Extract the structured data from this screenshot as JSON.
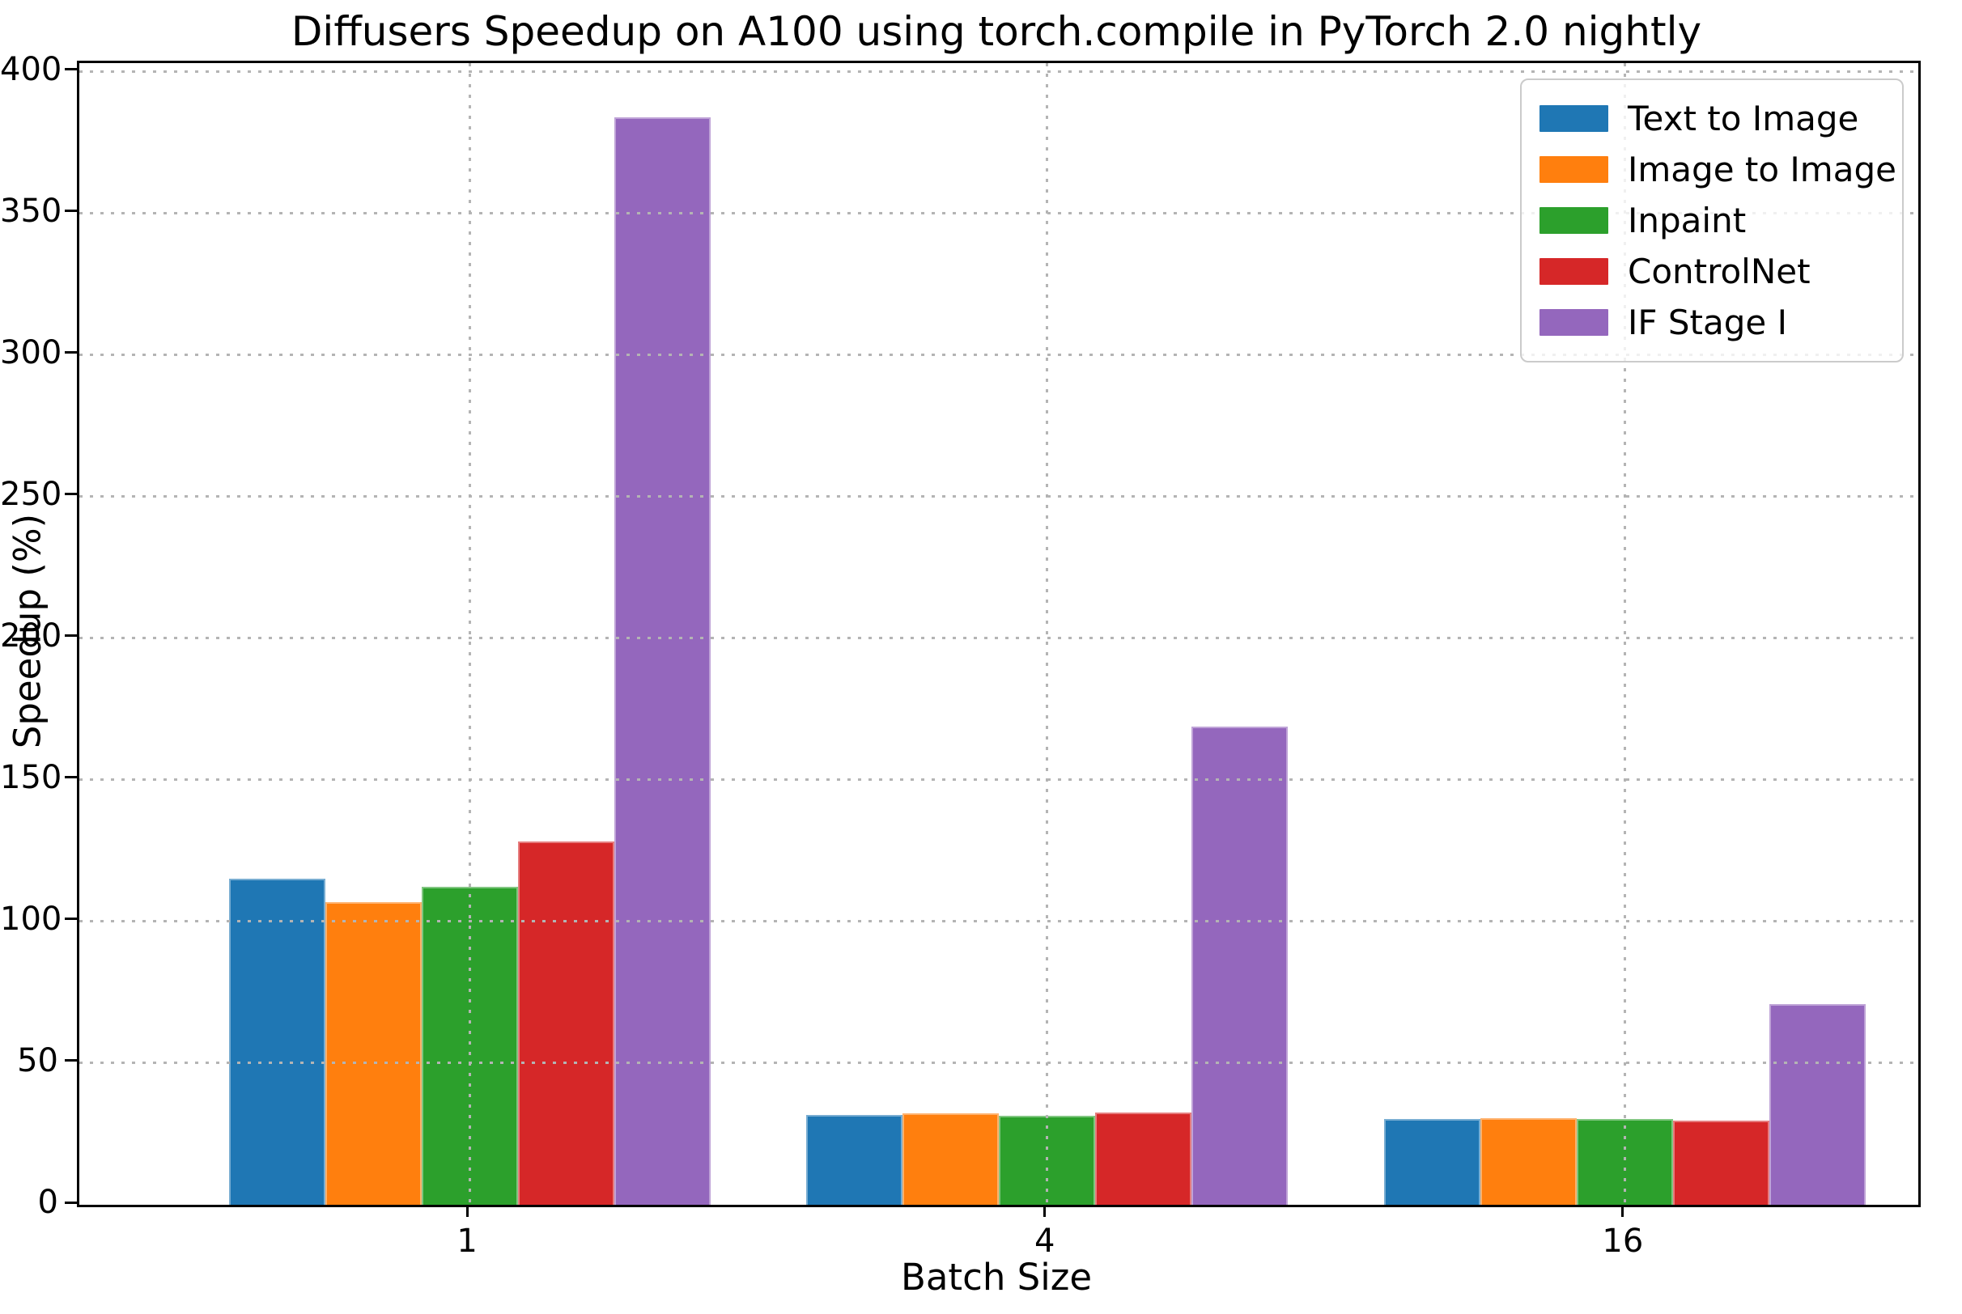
{
  "chart_data": {
    "type": "bar",
    "title": "Diffusers Speedup on A100 using torch.compile in PyTorch 2.0 nightly",
    "xlabel": "Batch Size",
    "ylabel": "Speedup (%)",
    "categories": [
      "1",
      "4",
      "16"
    ],
    "series": [
      {
        "name": "Text to Image",
        "color": "#1f77b4",
        "values": [
          115.0,
          31.7,
          30.4
        ]
      },
      {
        "name": "Image to Image",
        "color": "#ff7f0e",
        "values": [
          106.8,
          32.4,
          30.7
        ]
      },
      {
        "name": "Inpaint",
        "color": "#2ca02c",
        "values": [
          112.2,
          31.3,
          30.2
        ]
      },
      {
        "name": "ControlNet",
        "color": "#d62728",
        "values": [
          128.2,
          32.6,
          29.6
        ]
      },
      {
        "name": "IF Stage I",
        "color": "#9467bd",
        "values": [
          383.9,
          168.7,
          70.8
        ]
      }
    ],
    "ylim": [
      0,
      403
    ],
    "yticks": [
      0,
      50,
      100,
      150,
      200,
      250,
      300,
      350,
      400
    ],
    "grid": true,
    "grid_style": "dotted",
    "legend_position": "upper right",
    "background_color": "#ffffff",
    "axis_color": "#000000",
    "grid_color": "#b4b4b4"
  }
}
